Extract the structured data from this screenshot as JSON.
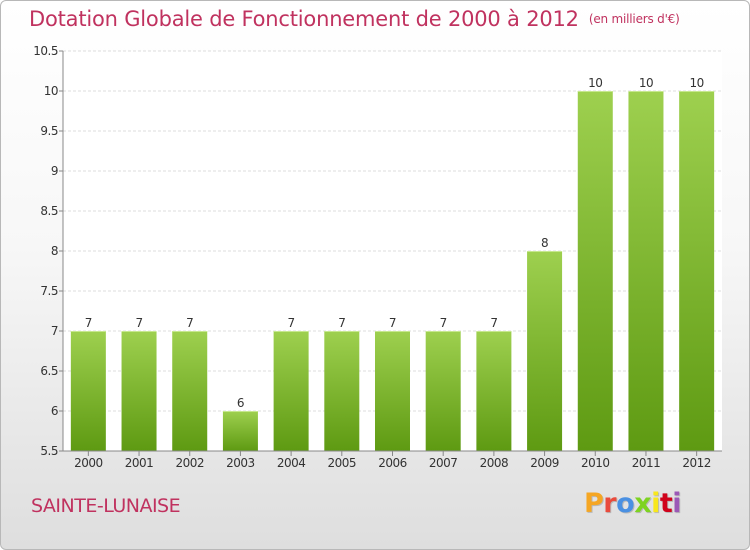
{
  "header": {
    "title": "Dotation Globale de Fonctionnement de 2000 à 2012",
    "subtitle": "(en milliers d'€)"
  },
  "footer": {
    "commune": "SAINTE-LUNAISE",
    "logo_text": "Proxiti",
    "logo_colors": [
      "#f5a623",
      "#e94b3c",
      "#4a90e2",
      "#7ed321",
      "#f8e71c",
      "#d0021b",
      "#9b59b6"
    ]
  },
  "colors": {
    "bar_top": "#9ed04f",
    "bar_bottom": "#5e9a12",
    "accent": "#c0325f"
  },
  "chart_data": {
    "type": "bar",
    "categories": [
      "2000",
      "2001",
      "2002",
      "2003",
      "2004",
      "2005",
      "2006",
      "2007",
      "2008",
      "2009",
      "2010",
      "2011",
      "2012"
    ],
    "values": [
      7,
      7,
      7,
      6,
      7,
      7,
      7,
      7,
      7,
      8,
      10,
      10,
      10
    ],
    "data_labels": [
      "7",
      "7",
      "7",
      "6",
      "7",
      "7",
      "7",
      "7",
      "7",
      "8",
      "10",
      "10",
      "10"
    ],
    "y_ticks": [
      "5.5",
      "6",
      "6.5",
      "7",
      "7.5",
      "8",
      "8.5",
      "9",
      "9.5",
      "10",
      "10.5"
    ],
    "ylim": [
      5.5,
      10.5
    ],
    "grid": true,
    "title": "Dotation Globale de Fonctionnement de 2000 à 2012",
    "xlabel": "",
    "ylabel": ""
  }
}
